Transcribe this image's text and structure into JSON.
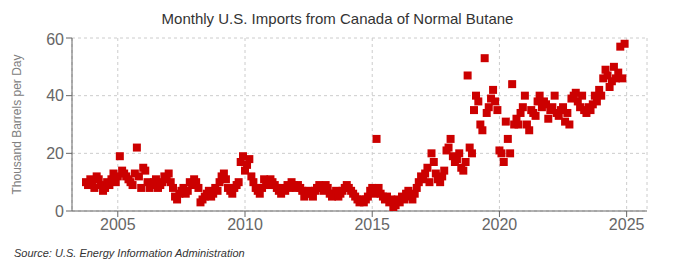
{
  "chart_data": {
    "type": "scatter",
    "title": "Monthly U.S. Imports from Canada of Normal Butane",
    "ylabel": "Thousand Barrels per Day",
    "source": "Source: U.S. Energy Information Administration",
    "color": "#CC0000",
    "marker": "square",
    "grid": true,
    "xlim": [
      2003.2,
      2025.8
    ],
    "xticks": [
      2005,
      2010,
      2015,
      2020,
      2025
    ],
    "ylim": [
      0,
      60
    ],
    "yticks": [
      0,
      20,
      40,
      60
    ],
    "x": [
      2003.75,
      2003.83,
      2003.92,
      2004.0,
      2004.08,
      2004.17,
      2004.25,
      2004.33,
      2004.42,
      2004.5,
      2004.58,
      2004.67,
      2004.75,
      2004.83,
      2004.92,
      2005.0,
      2005.08,
      2005.17,
      2005.25,
      2005.33,
      2005.42,
      2005.5,
      2005.58,
      2005.67,
      2005.75,
      2005.83,
      2005.92,
      2006.0,
      2006.08,
      2006.17,
      2006.25,
      2006.33,
      2006.42,
      2006.5,
      2006.58,
      2006.67,
      2006.75,
      2006.83,
      2006.92,
      2007.0,
      2007.08,
      2007.17,
      2007.25,
      2007.33,
      2007.42,
      2007.5,
      2007.58,
      2007.67,
      2007.75,
      2007.83,
      2007.92,
      2008.0,
      2008.08,
      2008.17,
      2008.25,
      2008.33,
      2008.42,
      2008.5,
      2008.58,
      2008.67,
      2008.75,
      2008.83,
      2008.92,
      2009.0,
      2009.08,
      2009.17,
      2009.25,
      2009.33,
      2009.42,
      2009.5,
      2009.58,
      2009.67,
      2009.75,
      2009.83,
      2009.92,
      2010.0,
      2010.08,
      2010.17,
      2010.25,
      2010.33,
      2010.42,
      2010.5,
      2010.58,
      2010.67,
      2010.75,
      2010.83,
      2010.92,
      2011.0,
      2011.08,
      2011.17,
      2011.25,
      2011.33,
      2011.42,
      2011.5,
      2011.58,
      2011.67,
      2011.75,
      2011.83,
      2011.92,
      2012.0,
      2012.08,
      2012.17,
      2012.25,
      2012.33,
      2012.42,
      2012.5,
      2012.58,
      2012.67,
      2012.75,
      2012.83,
      2012.92,
      2013.0,
      2013.08,
      2013.17,
      2013.25,
      2013.33,
      2013.42,
      2013.5,
      2013.58,
      2013.67,
      2013.75,
      2013.83,
      2013.92,
      2014.0,
      2014.08,
      2014.17,
      2014.25,
      2014.33,
      2014.42,
      2014.5,
      2014.58,
      2014.67,
      2014.75,
      2014.83,
      2014.92,
      2015.0,
      2015.08,
      2015.17,
      2015.25,
      2015.33,
      2015.42,
      2015.5,
      2015.58,
      2015.67,
      2015.75,
      2015.83,
      2015.92,
      2016.0,
      2016.08,
      2016.17,
      2016.25,
      2016.33,
      2016.42,
      2016.5,
      2016.58,
      2016.67,
      2016.75,
      2016.83,
      2016.92,
      2017.0,
      2017.08,
      2017.17,
      2017.25,
      2017.33,
      2017.42,
      2017.5,
      2017.58,
      2017.67,
      2017.75,
      2017.83,
      2017.92,
      2018.0,
      2018.08,
      2018.17,
      2018.25,
      2018.33,
      2018.42,
      2018.5,
      2018.58,
      2018.67,
      2018.75,
      2018.83,
      2018.92,
      2019.0,
      2019.08,
      2019.17,
      2019.25,
      2019.33,
      2019.42,
      2019.5,
      2019.58,
      2019.67,
      2019.75,
      2019.83,
      2019.92,
      2020.0,
      2020.08,
      2020.17,
      2020.25,
      2020.33,
      2020.42,
      2020.5,
      2020.58,
      2020.67,
      2020.75,
      2020.83,
      2020.92,
      2021.0,
      2021.08,
      2021.17,
      2021.25,
      2021.33,
      2021.42,
      2021.5,
      2021.58,
      2021.67,
      2021.75,
      2021.83,
      2021.92,
      2022.0,
      2022.08,
      2022.17,
      2022.25,
      2022.33,
      2022.42,
      2022.5,
      2022.58,
      2022.67,
      2022.75,
      2022.83,
      2022.92,
      2023.0,
      2023.08,
      2023.17,
      2023.25,
      2023.33,
      2023.42,
      2023.5,
      2023.58,
      2023.67,
      2023.75,
      2023.83,
      2023.92,
      2024.0,
      2024.08,
      2024.17,
      2024.25,
      2024.33,
      2024.42,
      2024.5,
      2024.58,
      2024.67,
      2024.75,
      2024.83,
      2024.92
    ],
    "values": [
      10,
      9,
      11,
      10,
      8,
      12,
      11,
      9,
      7,
      8,
      10,
      9,
      11,
      13,
      10,
      12,
      19,
      14,
      13,
      12,
      11,
      10,
      9,
      13,
      22,
      12,
      8,
      15,
      14,
      10,
      8,
      9,
      10,
      11,
      8,
      9,
      10,
      12,
      11,
      13,
      10,
      8,
      5,
      4,
      6,
      7,
      8,
      6,
      7,
      10,
      9,
      11,
      10,
      8,
      3,
      4,
      5,
      6,
      7,
      5,
      6,
      8,
      7,
      10,
      12,
      13,
      11,
      8,
      7,
      6,
      8,
      9,
      10,
      17,
      19,
      14,
      16,
      18,
      12,
      10,
      8,
      7,
      6,
      8,
      11,
      10,
      9,
      11,
      10,
      9,
      8,
      7,
      6,
      8,
      7,
      9,
      8,
      10,
      9,
      8,
      9,
      8,
      7,
      5,
      6,
      7,
      6,
      5,
      7,
      8,
      9,
      8,
      7,
      9,
      8,
      6,
      5,
      6,
      7,
      5,
      6,
      7,
      8,
      9,
      8,
      7,
      6,
      5,
      4,
      3,
      4,
      3,
      4,
      5,
      7,
      8,
      6,
      25,
      8,
      6,
      5,
      4,
      5,
      3,
      4,
      1,
      2,
      4,
      3,
      5,
      4,
      6,
      7,
      5,
      4,
      6,
      8,
      10,
      12,
      11,
      13,
      15,
      10,
      20,
      17,
      13,
      11,
      10,
      12,
      14,
      21,
      22,
      25,
      19,
      17,
      18,
      20,
      15,
      14,
      17,
      47,
      22,
      20,
      35,
      40,
      38,
      30,
      28,
      53,
      34,
      36,
      39,
      42,
      38,
      35,
      21,
      20,
      17,
      31,
      25,
      20,
      44,
      30,
      32,
      30,
      34,
      36,
      40,
      30,
      28,
      35,
      34,
      33,
      38,
      40,
      36,
      38,
      37,
      32,
      35,
      36,
      40,
      34,
      33,
      35,
      36,
      31,
      34,
      30,
      39,
      40,
      41,
      38,
      36,
      40,
      35,
      34,
      36,
      35,
      37,
      40,
      38,
      42,
      40,
      46,
      49,
      47,
      43,
      45,
      50,
      46,
      48,
      57,
      46,
      58
    ]
  }
}
